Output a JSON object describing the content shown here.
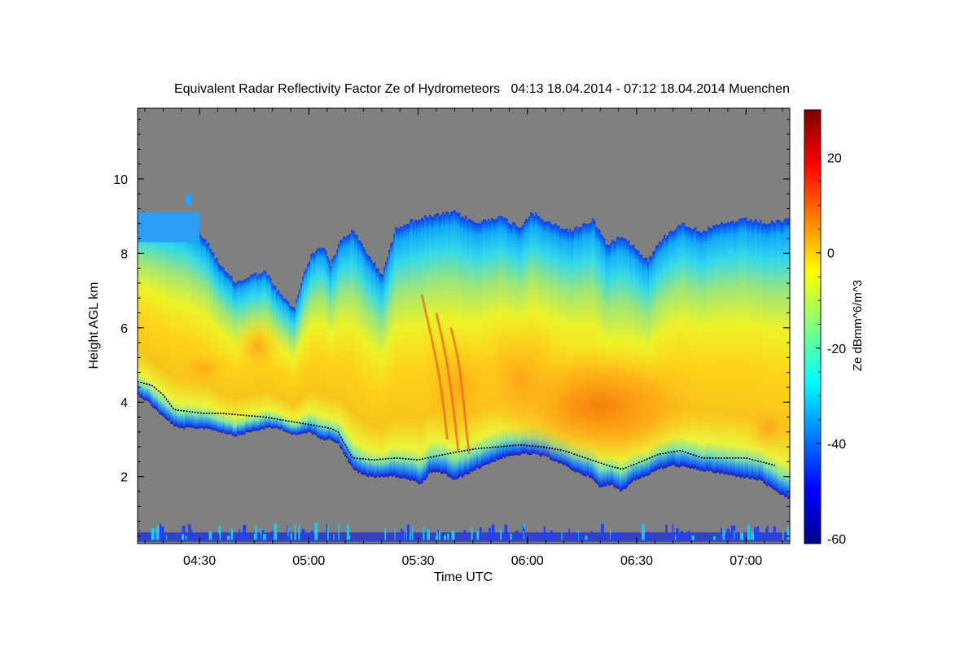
{
  "chart_data": {
    "type": "heatmap",
    "title": "Equivalent Radar Reflectivity Factor Ze of Hydrometeors",
    "period": "04:13 18.04.2014 - 07:12 18.04.2014",
    "location": "Muenchen",
    "xlabel": "Time UTC",
    "ylabel": "Height AGL km",
    "x_unit": "minutes since 04:00 UTC",
    "xlim": [
      13,
      192
    ],
    "ylim": [
      0.2,
      11.9
    ],
    "x_tick_values": [
      30,
      60,
      90,
      120,
      150,
      180
    ],
    "x_tick_labels": [
      "04:30",
      "05:00",
      "05:30",
      "06:00",
      "06:30",
      "07:00"
    ],
    "y_tick_values": [
      2,
      4,
      6,
      8,
      10
    ],
    "y_tick_labels": [
      "2",
      "4",
      "6",
      "8",
      "10"
    ],
    "colorbar": {
      "label": "Ze dBmm^6/m^3",
      "range": [
        -61,
        30
      ],
      "tick_values": [
        -60,
        -40,
        -20,
        0,
        20
      ],
      "tick_labels": [
        "-60",
        "-40",
        "-20",
        "0",
        "20"
      ]
    },
    "no_data_color": "#808080",
    "cloud_top_km": [
      [
        13,
        9.1
      ],
      [
        20,
        9.0
      ],
      [
        25,
        8.9
      ],
      [
        29,
        8.6
      ],
      [
        32,
        8.3
      ],
      [
        36,
        7.6
      ],
      [
        40,
        7.2
      ],
      [
        44,
        7.4
      ],
      [
        48,
        7.5
      ],
      [
        52,
        6.9
      ],
      [
        56,
        6.5
      ],
      [
        59,
        7.6
      ],
      [
        61,
        8.0
      ],
      [
        64,
        8.2
      ],
      [
        66,
        7.7
      ],
      [
        69,
        8.4
      ],
      [
        72,
        8.6
      ],
      [
        76,
        8.0
      ],
      [
        80,
        7.4
      ],
      [
        84,
        8.7
      ],
      [
        89,
        8.9
      ],
      [
        94,
        9.0
      ],
      [
        100,
        9.1
      ],
      [
        106,
        8.8
      ],
      [
        112,
        9.0
      ],
      [
        118,
        8.7
      ],
      [
        121,
        9.1
      ],
      [
        126,
        8.8
      ],
      [
        132,
        8.6
      ],
      [
        138,
        8.9
      ],
      [
        142,
        8.2
      ],
      [
        146,
        8.5
      ],
      [
        150,
        8.1
      ],
      [
        153,
        7.8
      ],
      [
        157,
        8.4
      ],
      [
        162,
        8.8
      ],
      [
        168,
        8.6
      ],
      [
        174,
        8.8
      ],
      [
        180,
        8.9
      ],
      [
        186,
        8.8
      ],
      [
        192,
        8.9
      ]
    ],
    "cloud_base_km": [
      [
        13,
        4.2
      ],
      [
        16,
        4.0
      ],
      [
        20,
        3.6
      ],
      [
        24,
        3.3
      ],
      [
        28,
        3.3
      ],
      [
        32,
        3.3
      ],
      [
        36,
        3.2
      ],
      [
        40,
        3.1
      ],
      [
        44,
        3.2
      ],
      [
        48,
        3.3
      ],
      [
        52,
        3.3
      ],
      [
        56,
        3.1
      ],
      [
        60,
        3.2
      ],
      [
        64,
        3.0
      ],
      [
        66,
        3.0
      ],
      [
        68,
        2.9
      ],
      [
        72,
        2.2
      ],
      [
        76,
        2.0
      ],
      [
        80,
        2.0
      ],
      [
        84,
        2.0
      ],
      [
        88,
        1.9
      ],
      [
        91,
        1.8
      ],
      [
        93,
        2.1
      ],
      [
        97,
        2.1
      ],
      [
        100,
        1.9
      ],
      [
        104,
        2.1
      ],
      [
        108,
        2.3
      ],
      [
        113,
        2.5
      ],
      [
        118,
        2.6
      ],
      [
        122,
        2.6
      ],
      [
        126,
        2.5
      ],
      [
        130,
        2.3
      ],
      [
        134,
        2.1
      ],
      [
        137,
        2.0
      ],
      [
        140,
        1.7
      ],
      [
        143,
        1.8
      ],
      [
        146,
        1.6
      ],
      [
        149,
        1.9
      ],
      [
        152,
        2.0
      ],
      [
        156,
        2.2
      ],
      [
        160,
        2.3
      ],
      [
        166,
        2.2
      ],
      [
        172,
        2.1
      ],
      [
        178,
        2.0
      ],
      [
        184,
        1.9
      ],
      [
        188,
        1.6
      ],
      [
        192,
        1.4
      ]
    ],
    "detected_cloud_base_km": [
      [
        13,
        4.55
      ],
      [
        17,
        4.45
      ],
      [
        20,
        4.2
      ],
      [
        23,
        3.8
      ],
      [
        27,
        3.75
      ],
      [
        31,
        3.7
      ],
      [
        36,
        3.7
      ],
      [
        42,
        3.65
      ],
      [
        48,
        3.6
      ],
      [
        54,
        3.5
      ],
      [
        60,
        3.4
      ],
      [
        66,
        3.3
      ],
      [
        68,
        3.2
      ],
      [
        72,
        2.5
      ],
      [
        78,
        2.45
      ],
      [
        84,
        2.5
      ],
      [
        90,
        2.45
      ],
      [
        95,
        2.55
      ],
      [
        100,
        2.65
      ],
      [
        106,
        2.75
      ],
      [
        112,
        2.8
      ],
      [
        118,
        2.85
      ],
      [
        124,
        2.8
      ],
      [
        130,
        2.7
      ],
      [
        136,
        2.5
      ],
      [
        142,
        2.3
      ],
      [
        146,
        2.2
      ],
      [
        150,
        2.35
      ],
      [
        156,
        2.6
      ],
      [
        162,
        2.7
      ],
      [
        168,
        2.5
      ],
      [
        174,
        2.5
      ],
      [
        180,
        2.5
      ],
      [
        188,
        2.3
      ]
    ],
    "secondary_layers": [
      {
        "name": "upper-left fragment",
        "x": [
          13,
          30
        ],
        "top_km": 9.1,
        "bottom_km": 8.3
      },
      {
        "name": "isolated echo",
        "x": [
          26,
          28
        ],
        "top_km": 9.6,
        "bottom_km": 9.3
      },
      {
        "name": "surface clutter",
        "x": [
          13,
          192
        ],
        "top_km": 0.5,
        "bottom_km": 0.25
      }
    ],
    "max_reflectivity_dbz": 12,
    "notes": [
      "maximum reflectivity around 06:15-06:30 UTC between 3 and 5 km",
      "fall streaks near 05:40 UTC"
    ]
  }
}
